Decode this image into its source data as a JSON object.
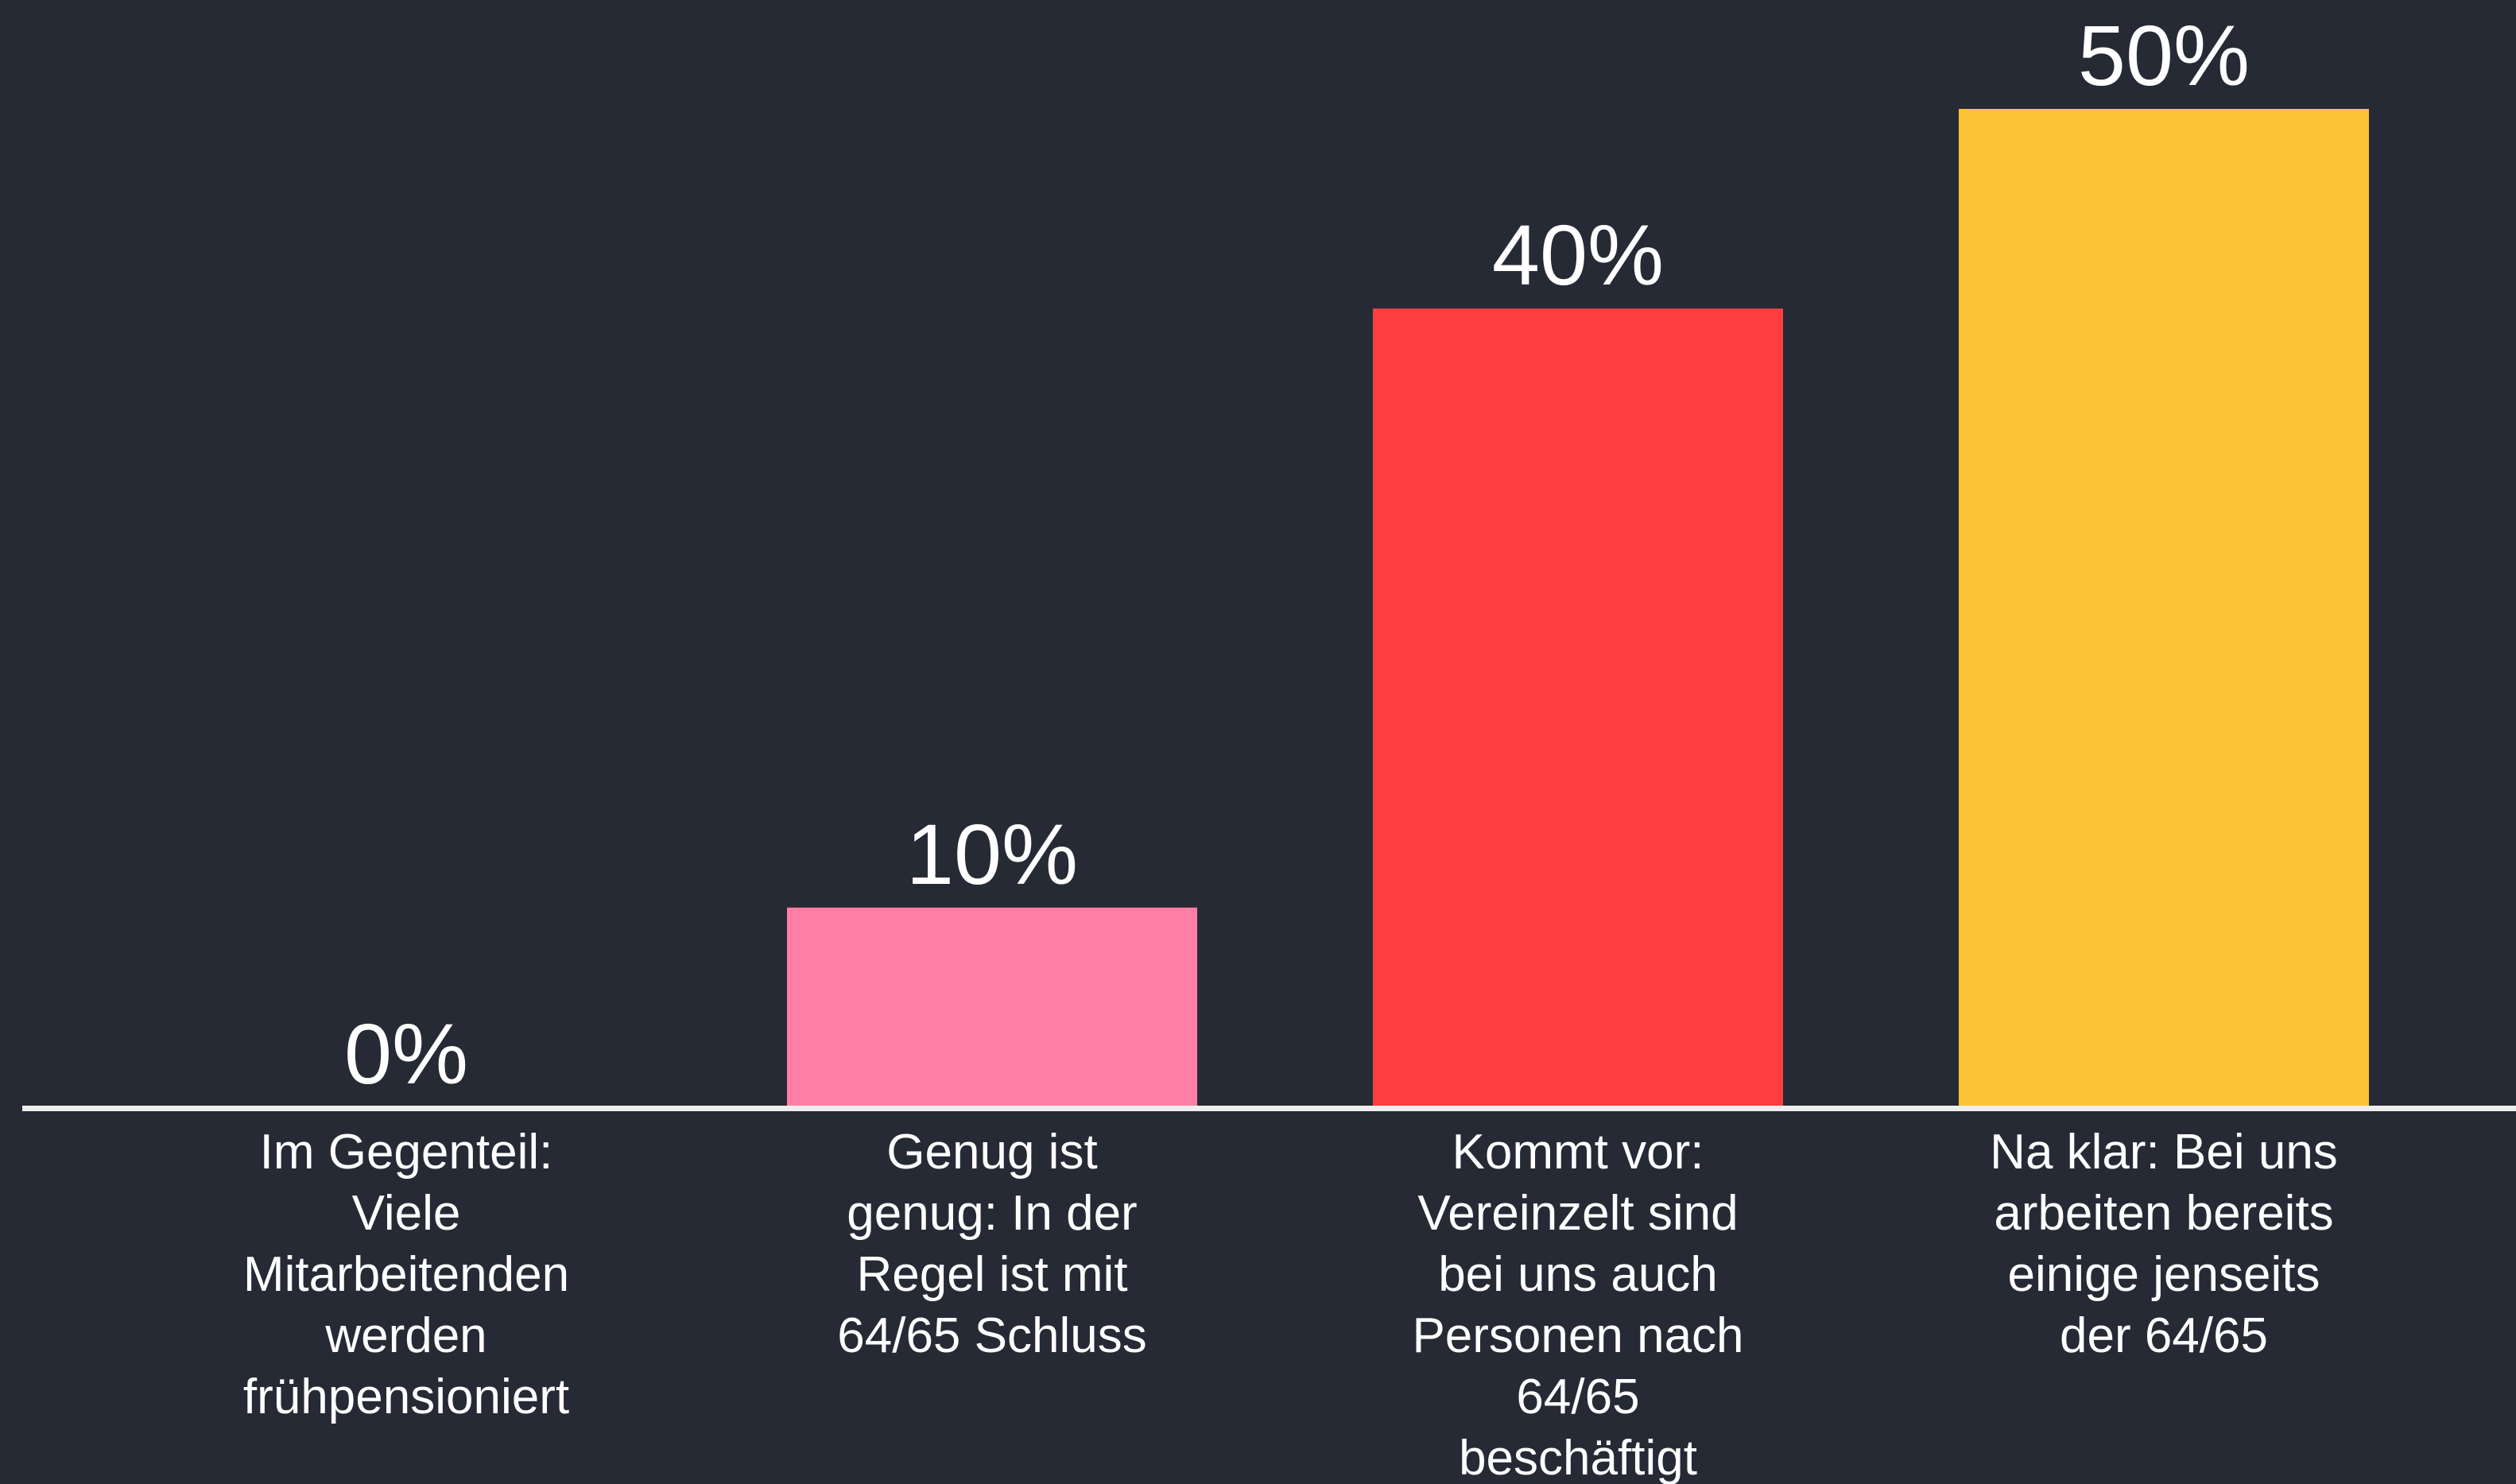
{
  "chart_data": {
    "type": "bar",
    "categories": [
      [
        "Im Gegenteil:",
        "Viele",
        "Mitarbeitenden",
        "werden",
        "frühpensioniert"
      ],
      [
        "Genug ist",
        "genug: In der",
        "Regel ist mit",
        "64/65 Schluss"
      ],
      [
        "Kommt vor:",
        "Vereinzelt sind",
        "bei uns auch",
        "Personen nach",
        "64/65",
        "beschäftigt"
      ],
      [
        "Na klar: Bei uns",
        "arbeiten bereits",
        "einige jenseits",
        "der 64/65"
      ]
    ],
    "values": [
      0,
      10,
      40,
      50
    ],
    "value_labels": [
      "0%",
      "10%",
      "40%",
      "50%"
    ],
    "colors": [
      "#ff7fa6",
      "#ff7fa6",
      "#ff3f3f",
      "#fdc337"
    ]
  }
}
